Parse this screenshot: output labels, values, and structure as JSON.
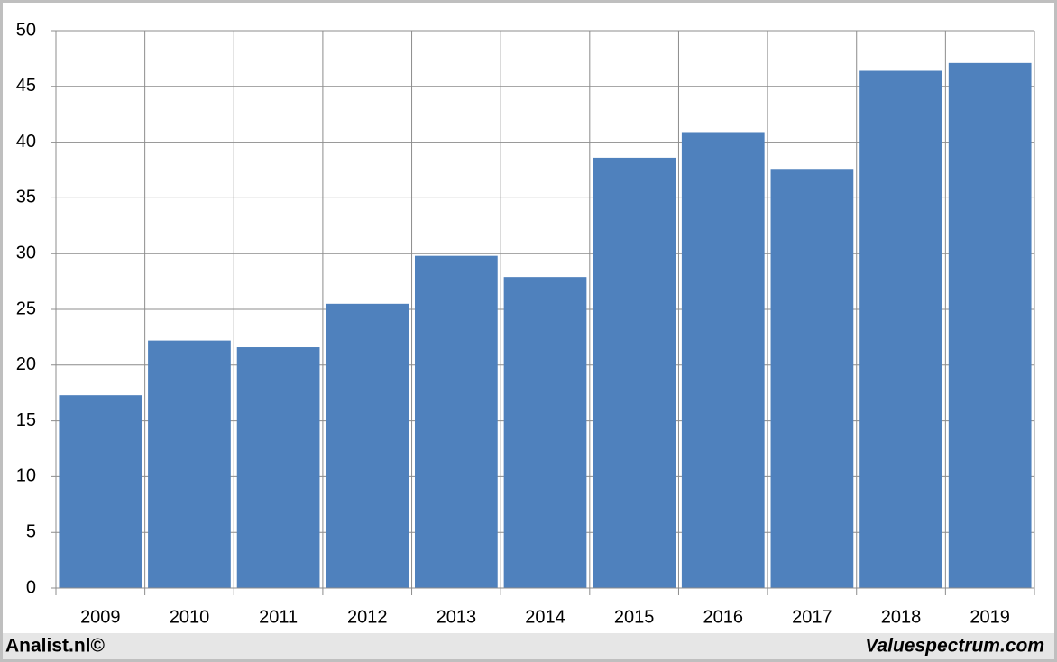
{
  "chart_data": {
    "type": "bar",
    "categories": [
      "2009",
      "2010",
      "2011",
      "2012",
      "2013",
      "2014",
      "2015",
      "2016",
      "2017",
      "2018",
      "2019"
    ],
    "values": [
      17.3,
      22.2,
      21.6,
      25.5,
      29.8,
      27.9,
      38.6,
      40.9,
      37.6,
      46.4,
      47.1
    ],
    "color": "#4f81bd",
    "ylim": [
      0,
      50
    ],
    "yticks": [
      0,
      5,
      10,
      15,
      20,
      25,
      30,
      35,
      40,
      45,
      50
    ],
    "grid": true
  },
  "footer": {
    "left": "Analist.nl©",
    "right": "Valuespectrum.com"
  }
}
